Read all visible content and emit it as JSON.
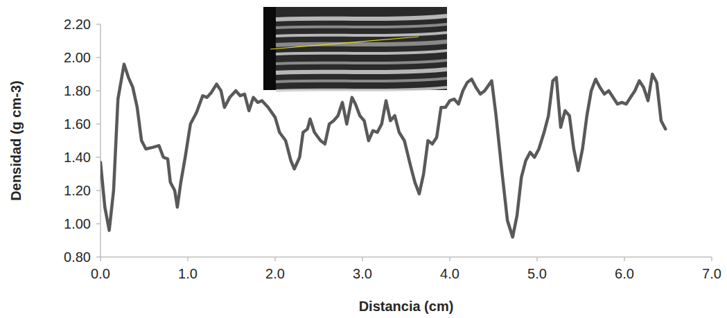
{
  "chart_data": {
    "type": "line",
    "x_label": "Distancia (cm)",
    "y_label": "Densidad (g cm-3)",
    "color": "#595959",
    "xlim": [
      0,
      7
    ],
    "ylim": [
      0.8,
      2.2
    ],
    "xticks": [
      {
        "value": 0,
        "label": "0.0"
      },
      {
        "value": 1,
        "label": "1.0"
      },
      {
        "value": 2,
        "label": "2.0"
      },
      {
        "value": 3,
        "label": "3.0"
      },
      {
        "value": 4,
        "label": "4.0"
      },
      {
        "value": 5,
        "label": "5.0"
      },
      {
        "value": 6,
        "label": "6.0"
      },
      {
        "value": 7,
        "label": "7.0"
      }
    ],
    "yticks": [
      {
        "value": 0.8,
        "label": "0.80"
      },
      {
        "value": 1.0,
        "label": "1.00"
      },
      {
        "value": 1.2,
        "label": "1.20"
      },
      {
        "value": 1.4,
        "label": "1.40"
      },
      {
        "value": 1.6,
        "label": "1.60"
      },
      {
        "value": 1.8,
        "label": "1.80"
      },
      {
        "value": 2.0,
        "label": "2.00"
      },
      {
        "value": 2.2,
        "label": "2.20"
      }
    ],
    "grid": false,
    "x": [
      0.0,
      0.05,
      0.1,
      0.15,
      0.2,
      0.27,
      0.32,
      0.37,
      0.42,
      0.47,
      0.52,
      0.6,
      0.67,
      0.72,
      0.77,
      0.8,
      0.85,
      0.88,
      0.92,
      0.97,
      1.03,
      1.1,
      1.17,
      1.22,
      1.27,
      1.33,
      1.38,
      1.42,
      1.48,
      1.55,
      1.6,
      1.65,
      1.7,
      1.75,
      1.8,
      1.85,
      1.92,
      2.0,
      2.05,
      2.12,
      2.18,
      2.22,
      2.28,
      2.32,
      2.37,
      2.4,
      2.45,
      2.52,
      2.57,
      2.62,
      2.67,
      2.72,
      2.77,
      2.82,
      2.88,
      2.92,
      2.97,
      3.02,
      3.07,
      3.12,
      3.17,
      3.22,
      3.27,
      3.32,
      3.37,
      3.42,
      3.48,
      3.55,
      3.6,
      3.65,
      3.7,
      3.75,
      3.8,
      3.85,
      3.9,
      3.95,
      4.0,
      4.05,
      4.1,
      4.15,
      4.2,
      4.25,
      4.3,
      4.35,
      4.4,
      4.48,
      4.53,
      4.6,
      4.66,
      4.72,
      4.77,
      4.82,
      4.87,
      4.92,
      4.97,
      5.02,
      5.08,
      5.13,
      5.18,
      5.22,
      5.27,
      5.32,
      5.37,
      5.42,
      5.47,
      5.52,
      5.57,
      5.62,
      5.67,
      5.72,
      5.77,
      5.82,
      5.87,
      5.92,
      5.97,
      6.02,
      6.07,
      6.12,
      6.17,
      6.22,
      6.27,
      6.32,
      6.37,
      6.42,
      6.47
    ],
    "values": [
      1.37,
      1.1,
      0.96,
      1.2,
      1.75,
      1.96,
      1.88,
      1.82,
      1.7,
      1.5,
      1.45,
      1.46,
      1.47,
      1.4,
      1.39,
      1.25,
      1.2,
      1.1,
      1.25,
      1.4,
      1.6,
      1.67,
      1.77,
      1.76,
      1.79,
      1.84,
      1.8,
      1.7,
      1.76,
      1.8,
      1.77,
      1.78,
      1.68,
      1.76,
      1.73,
      1.74,
      1.7,
      1.64,
      1.55,
      1.5,
      1.38,
      1.33,
      1.4,
      1.55,
      1.57,
      1.63,
      1.55,
      1.5,
      1.48,
      1.6,
      1.62,
      1.65,
      1.73,
      1.6,
      1.76,
      1.72,
      1.65,
      1.62,
      1.5,
      1.56,
      1.55,
      1.6,
      1.74,
      1.62,
      1.65,
      1.55,
      1.5,
      1.35,
      1.25,
      1.18,
      1.3,
      1.5,
      1.48,
      1.52,
      1.7,
      1.7,
      1.74,
      1.75,
      1.72,
      1.8,
      1.85,
      1.87,
      1.82,
      1.78,
      1.8,
      1.86,
      1.65,
      1.3,
      1.02,
      0.92,
      1.05,
      1.28,
      1.38,
      1.43,
      1.4,
      1.45,
      1.55,
      1.65,
      1.86,
      1.88,
      1.58,
      1.68,
      1.65,
      1.45,
      1.32,
      1.45,
      1.65,
      1.8,
      1.87,
      1.82,
      1.78,
      1.8,
      1.76,
      1.72,
      1.73,
      1.72,
      1.76,
      1.8,
      1.86,
      1.82,
      1.74,
      1.9,
      1.85,
      1.62,
      1.57
    ]
  }
}
